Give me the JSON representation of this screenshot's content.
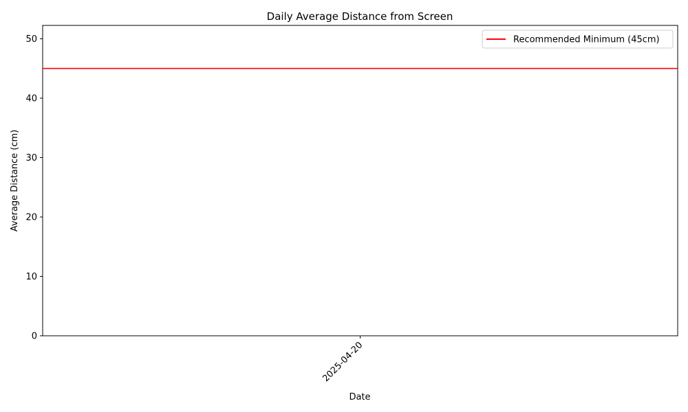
{
  "chart_data": {
    "type": "line",
    "title": "Daily Average Distance from Screen",
    "xlabel": "Date",
    "ylabel": "Average Distance (cm)",
    "x_ticks": [
      "2025-04-20"
    ],
    "ylim": [
      0,
      52.25
    ],
    "y_ticks": [
      0,
      10,
      20,
      30,
      40,
      50
    ],
    "grid": false,
    "legend_position": "top-right",
    "series": [],
    "reference_lines": [
      {
        "name": "Recommended Minimum (45cm)",
        "y": 45,
        "color": "#ff0000"
      }
    ]
  }
}
